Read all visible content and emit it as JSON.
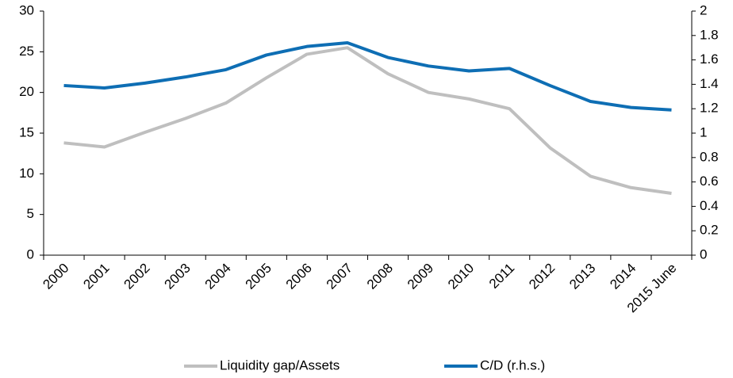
{
  "chart_data": {
    "type": "line",
    "categories": [
      "2000",
      "2001",
      "2002",
      "2003",
      "2004",
      "2005",
      "2006",
      "2007",
      "2008",
      "2009",
      "2010",
      "2011",
      "2012",
      "2013",
      "2014",
      "2015 June"
    ],
    "series": [
      {
        "name": "Liquidity gap/Assets",
        "color": "#bfbfbf",
        "values": [
          13.8,
          13.3,
          15.1,
          16.8,
          18.7,
          21.8,
          24.7,
          25.5,
          22.3,
          20.0,
          19.2,
          18.0,
          13.2,
          9.7,
          8.3,
          7.6
        ]
      },
      {
        "name": "C/D (r.h.s.)",
        "color": "#0e6eb4",
        "axis": "y2",
        "values": [
          1.39,
          1.37,
          1.41,
          1.46,
          1.52,
          1.64,
          1.71,
          1.74,
          1.62,
          1.55,
          1.51,
          1.53,
          1.39,
          1.26,
          1.21,
          1.19
        ]
      }
    ],
    "ylim": [
      0,
      30
    ],
    "yticks": [
      0,
      5,
      10,
      15,
      20,
      25,
      30
    ],
    "y2lim": [
      0,
      2
    ],
    "y2ticks": [
      0,
      0.2,
      0.4,
      0.6,
      0.8,
      1,
      1.2,
      1.4,
      1.6,
      1.8,
      2
    ],
    "grid": false,
    "legend": "bottom"
  }
}
